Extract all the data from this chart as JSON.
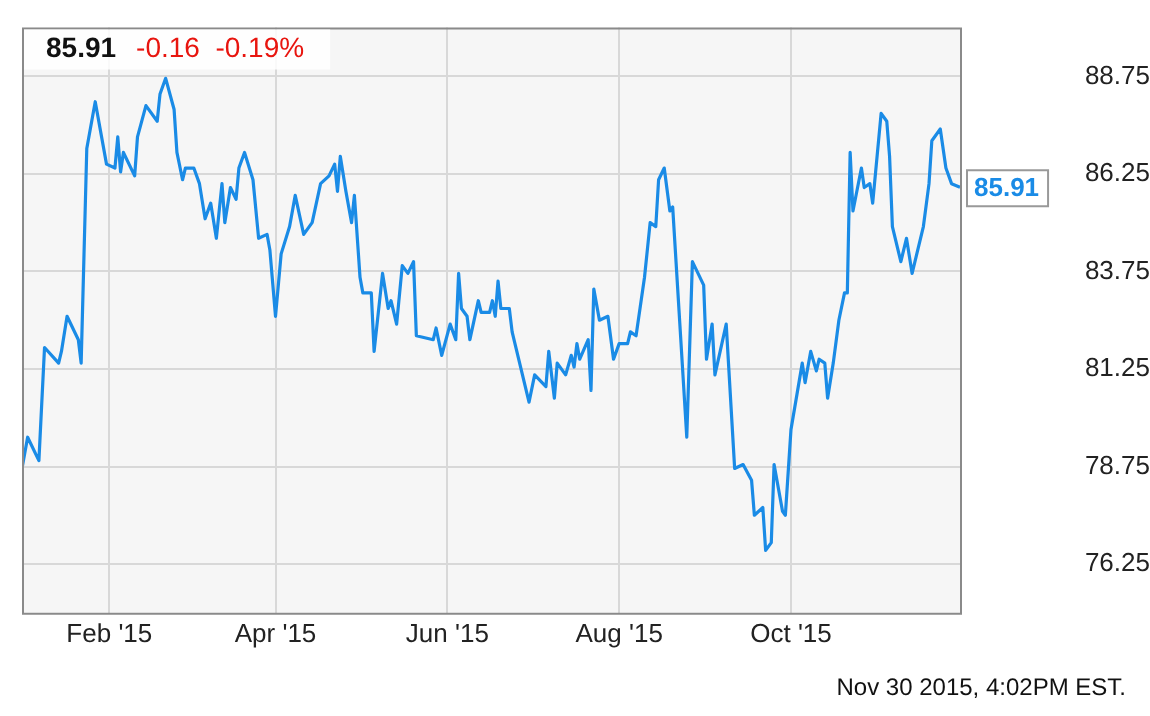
{
  "chart_data": {
    "type": "line",
    "title": "85.91",
    "subtitle": "-0.16  -0.19%",
    "annotations": [
      {
        "text": "85.91",
        "x": "2015-11-30",
        "y": 85.91
      },
      "Nov 30 2015, 4:02PM EST."
    ],
    "xlim": [
      "2015-01-01",
      "2015-11-30"
    ],
    "xticks": [
      {
        "value": "2015-02-01",
        "label": "Feb '15"
      },
      {
        "value": "2015-04-01",
        "label": "Apr '15"
      },
      {
        "value": "2015-06-01",
        "label": "Jun '15"
      },
      {
        "value": "2015-08-01",
        "label": "Aug '15"
      },
      {
        "value": "2015-10-01",
        "label": "Oct '15"
      }
    ],
    "ylim": [
      75,
      90
    ],
    "yticks": [
      76.25,
      78.75,
      81.25,
      83.75,
      86.25,
      88.75
    ],
    "grid": true,
    "marker": "none",
    "line_style": "solid",
    "x": [
      "2015-01-01",
      "2015-01-03",
      "2015-01-07",
      "2015-01-09",
      "2015-01-14",
      "2015-01-15",
      "2015-01-17",
      "2015-01-21",
      "2015-01-22",
      "2015-01-24",
      "2015-01-27",
      "2015-01-31",
      "2015-02-03",
      "2015-02-04",
      "2015-02-05",
      "2015-02-06",
      "2015-02-10",
      "2015-02-11",
      "2015-02-14",
      "2015-02-18",
      "2015-02-19",
      "2015-02-21",
      "2015-02-24",
      "2015-02-25",
      "2015-02-27",
      "2015-02-28",
      "2015-03-03",
      "2015-03-05",
      "2015-03-07",
      "2015-03-09",
      "2015-03-11",
      "2015-03-13",
      "2015-03-14",
      "2015-03-16",
      "2015-03-18",
      "2015-03-19",
      "2015-03-21",
      "2015-03-24",
      "2015-03-26",
      "2015-03-29",
      "2015-03-30",
      "2015-04-01",
      "2015-04-03",
      "2015-04-06",
      "2015-04-08",
      "2015-04-11",
      "2015-04-14",
      "2015-04-17",
      "2015-04-20",
      "2015-04-22",
      "2015-04-23",
      "2015-04-24",
      "2015-04-26",
      "2015-04-28",
      "2015-04-29",
      "2015-05-01",
      "2015-05-02",
      "2015-05-05",
      "2015-05-06",
      "2015-05-09",
      "2015-05-11",
      "2015-05-12",
      "2015-05-14",
      "2015-05-16",
      "2015-05-18",
      "2015-05-20",
      "2015-05-21",
      "2015-05-27",
      "2015-05-28",
      "2015-05-30",
      "2015-06-02",
      "2015-06-04",
      "2015-06-05",
      "2015-06-06",
      "2015-06-08",
      "2015-06-09",
      "2015-06-12",
      "2015-06-13",
      "2015-06-16",
      "2015-06-17",
      "2015-06-18",
      "2015-06-19",
      "2015-06-20",
      "2015-06-23",
      "2015-06-24",
      "2015-06-30",
      "2015-07-02",
      "2015-07-06",
      "2015-07-07",
      "2015-07-09",
      "2015-07-10",
      "2015-07-13",
      "2015-07-15",
      "2015-07-16",
      "2015-07-17",
      "2015-07-18",
      "2015-07-21",
      "2015-07-22",
      "2015-07-23",
      "2015-07-25",
      "2015-07-28",
      "2015-07-30",
      "2015-08-01",
      "2015-08-04",
      "2015-08-05",
      "2015-08-07",
      "2015-08-10",
      "2015-08-12",
      "2015-08-14",
      "2015-08-15",
      "2015-08-17",
      "2015-08-19",
      "2015-08-20",
      "2015-08-25",
      "2015-08-27",
      "2015-08-31",
      "2015-09-01",
      "2015-09-03",
      "2015-09-04",
      "2015-09-08",
      "2015-09-11",
      "2015-09-14",
      "2015-09-17",
      "2015-09-18",
      "2015-09-21",
      "2015-09-22",
      "2015-09-24",
      "2015-09-25",
      "2015-09-28",
      "2015-09-29",
      "2015-10-01",
      "2015-10-05",
      "2015-10-06",
      "2015-10-08",
      "2015-10-10",
      "2015-10-11",
      "2015-10-13",
      "2015-10-14",
      "2015-10-16",
      "2015-10-18",
      "2015-10-20",
      "2015-10-21",
      "2015-10-22",
      "2015-10-23",
      "2015-10-26",
      "2015-10-27",
      "2015-10-29",
      "2015-10-30",
      "2015-11-02",
      "2015-11-04",
      "2015-11-05",
      "2015-11-06",
      "2015-11-09",
      "2015-11-11",
      "2015-11-13",
      "2015-11-17",
      "2015-11-19",
      "2015-11-20",
      "2015-11-23",
      "2015-11-25",
      "2015-11-27",
      "2015-11-30"
    ],
    "series": [
      {
        "color": "#1a8be6",
        "values": [
          78.7,
          79.5,
          78.9,
          81.8,
          81.4,
          81.7,
          82.6,
          82.0,
          81.4,
          86.9,
          88.1,
          86.5,
          86.4,
          87.2,
          86.3,
          86.8,
          86.2,
          87.2,
          88.0,
          87.6,
          88.3,
          88.7,
          87.9,
          86.8,
          86.1,
          86.4,
          86.4,
          86.0,
          85.1,
          85.5,
          84.6,
          86.0,
          85.0,
          85.9,
          85.6,
          86.4,
          86.8,
          86.1,
          84.6,
          84.7,
          84.3,
          82.6,
          84.2,
          84.9,
          85.7,
          84.7,
          85.0,
          86.0,
          86.2,
          86.5,
          85.8,
          86.7,
          85.8,
          85.0,
          85.7,
          83.6,
          83.2,
          83.2,
          81.7,
          83.7,
          82.8,
          83.0,
          82.4,
          83.9,
          83.7,
          84.0,
          82.1,
          82.0,
          82.3,
          81.6,
          82.4,
          82.0,
          83.7,
          82.8,
          82.6,
          82.0,
          83.0,
          82.7,
          82.7,
          83.0,
          82.6,
          83.5,
          82.8,
          82.8,
          82.2,
          80.4,
          81.1,
          80.8,
          81.7,
          80.5,
          81.4,
          81.1,
          81.6,
          81.3,
          81.9,
          81.5,
          82.0,
          80.7,
          83.3,
          82.5,
          82.6,
          81.5,
          81.9,
          81.9,
          82.2,
          82.1,
          83.6,
          85.0,
          84.9,
          86.1,
          86.4,
          85.3,
          85.4,
          79.5,
          84.0,
          83.4,
          81.5,
          82.4,
          81.1,
          82.4,
          78.7,
          78.8,
          78.4,
          77.5,
          77.7,
          76.6,
          76.8,
          78.8,
          77.6,
          77.5,
          79.7,
          81.4,
          80.9,
          81.7,
          81.2,
          81.5,
          81.4,
          80.5,
          81.4,
          82.5,
          83.2,
          83.2,
          86.8,
          85.3,
          86.4,
          85.9,
          86.0,
          85.5,
          87.8,
          87.6,
          86.7,
          84.9,
          84.0,
          84.6,
          83.7,
          84.9,
          86.0,
          87.1,
          87.4,
          86.4,
          86.0,
          85.91
        ]
      }
    ]
  }
}
